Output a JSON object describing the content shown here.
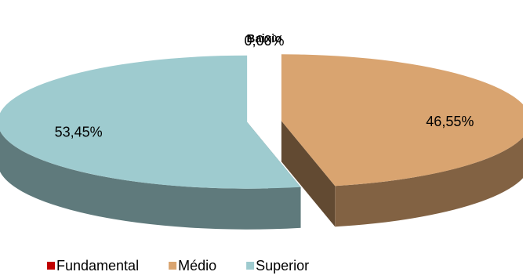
{
  "chart_data": {
    "type": "pie",
    "title": "Baixio",
    "categories": [
      "Fundamental",
      "Médio",
      "Superior"
    ],
    "values": [
      0,
      46.55,
      53.45
    ],
    "value_labels": [
      "0,00%",
      "46,55%",
      "53,45%"
    ],
    "colors": [
      "#c00000",
      "#d9a470",
      "#9ecbcf"
    ],
    "legend": "bottom"
  }
}
